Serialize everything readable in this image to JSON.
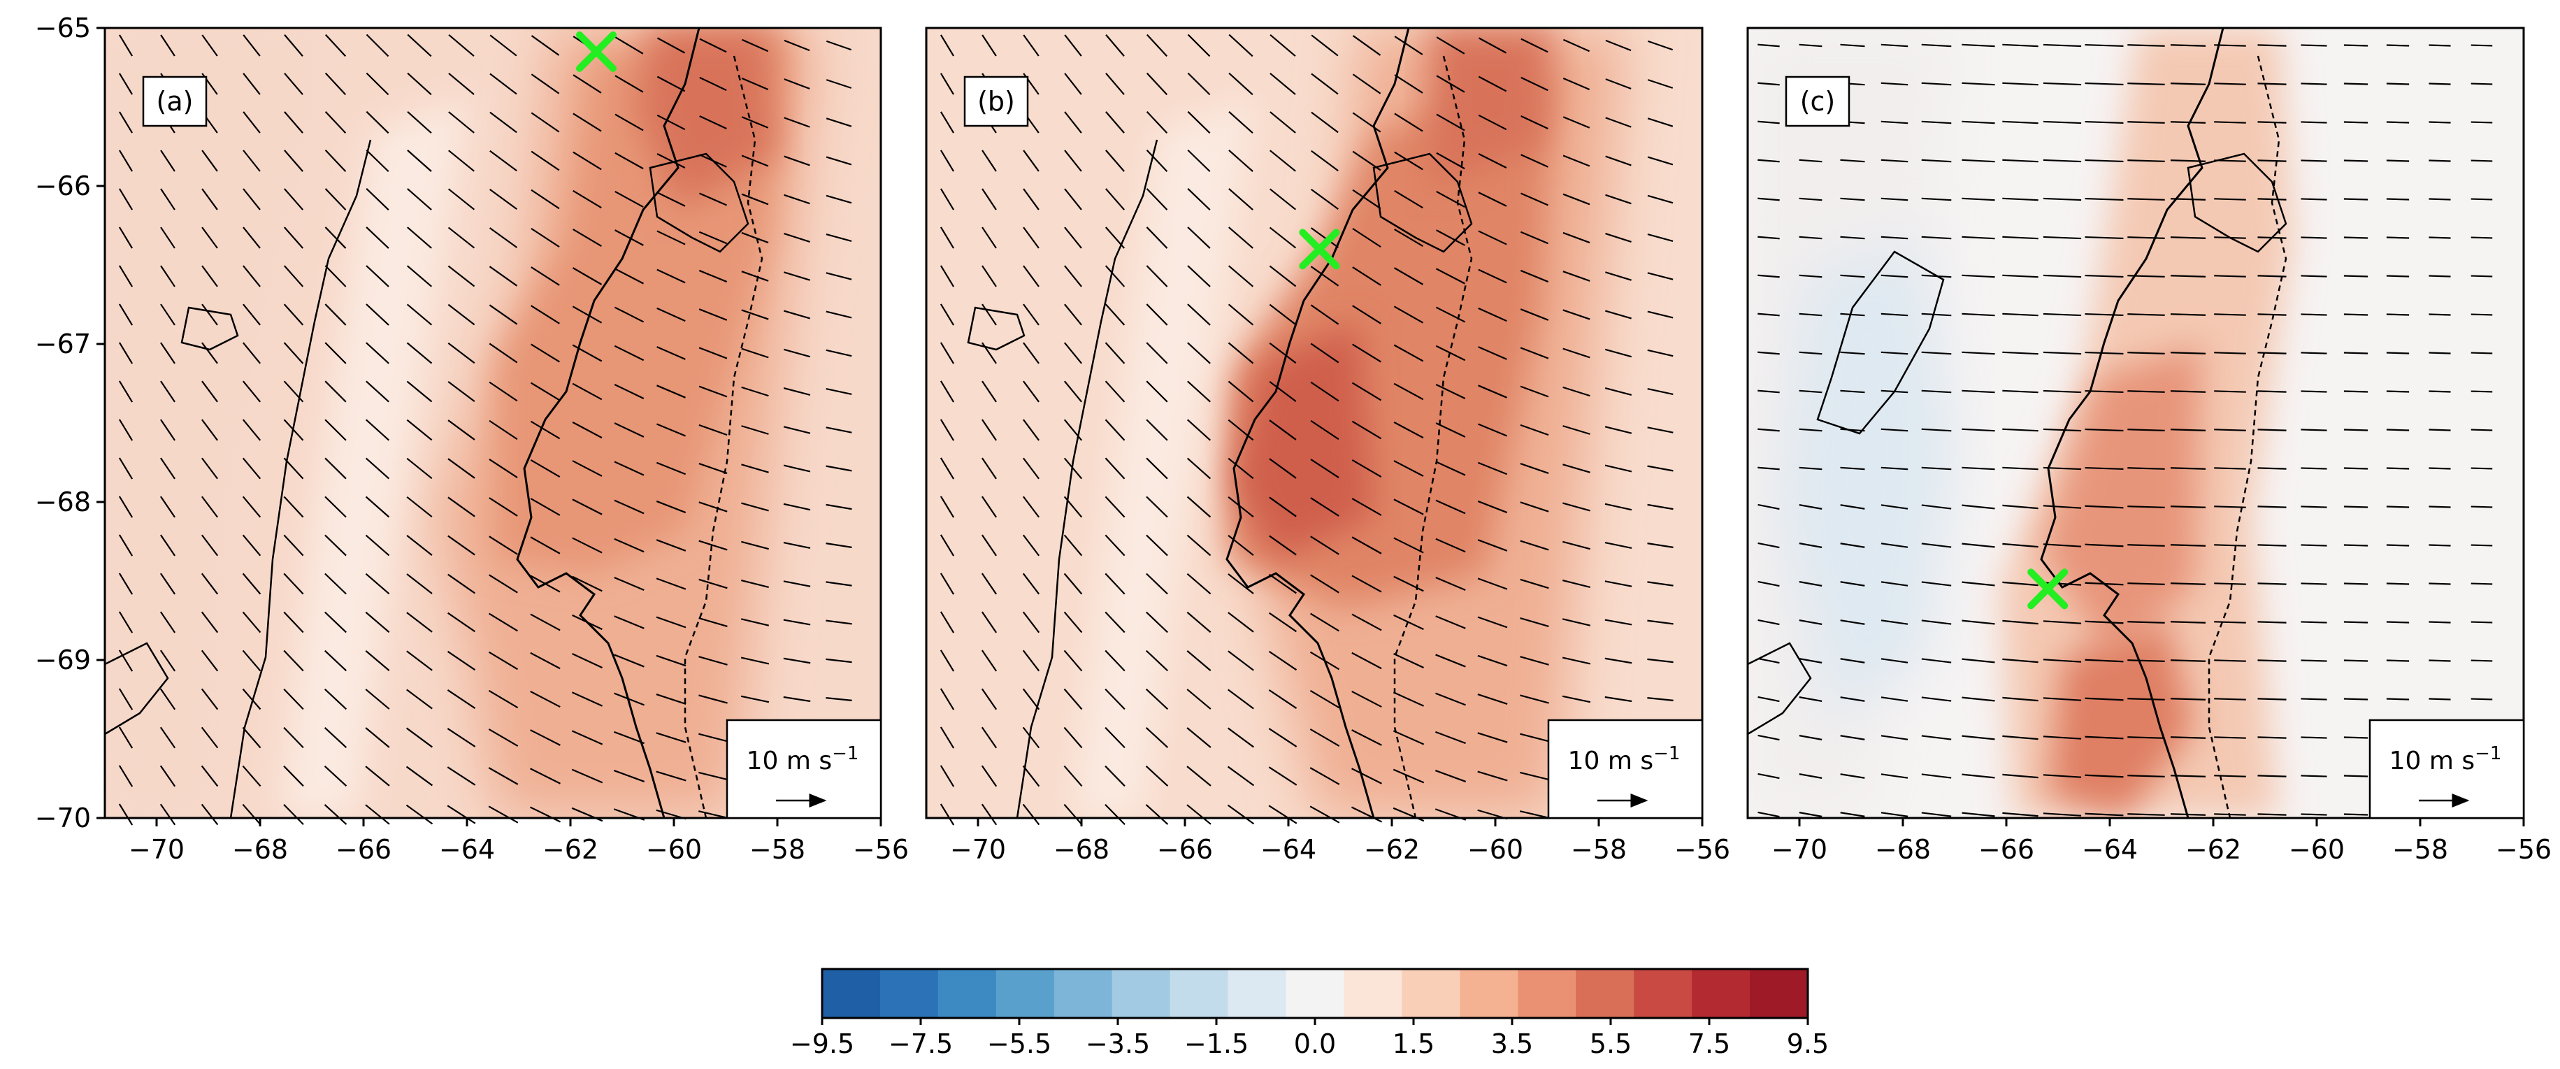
{
  "panels": [
    {
      "label": "(a)",
      "marker": {
        "lon": -61.5,
        "lat": -65.15
      }
    },
    {
      "label": "(b)",
      "marker": {
        "lon": -63.4,
        "lat": -66.4
      }
    },
    {
      "label": "(c)",
      "marker": {
        "lon": -65.2,
        "lat": -68.55
      }
    }
  ],
  "axes": {
    "x_ticks": [
      "−70",
      "−68",
      "−66",
      "−64",
      "−62",
      "−60",
      "−58",
      "−56"
    ],
    "x_values": [
      -70,
      -68,
      -66,
      -64,
      -62,
      -60,
      -58,
      -56
    ],
    "x_range": [
      -71.0,
      -56.0
    ],
    "y_ticks": [
      "−65",
      "−66",
      "−67",
      "−68",
      "−69",
      "−70"
    ],
    "y_values": [
      -65,
      -66,
      -67,
      -68,
      -69,
      -70
    ],
    "y_range": [
      -70.0,
      -65.0
    ]
  },
  "reference_vector": {
    "label": "10 m s",
    "exponent": "−1"
  },
  "colorbar": {
    "tick_labels": [
      "−9.5",
      "−7.5",
      "−5.5",
      "−3.5",
      "−1.5",
      "0.0",
      "1.5",
      "3.5",
      "5.5",
      "7.5",
      "9.5"
    ],
    "colors": [
      "#1f5fa6",
      "#2b73b6",
      "#3d89c2",
      "#5aa0cd",
      "#7db5d9",
      "#a2cbe3",
      "#c3dcec",
      "#dde9f2",
      "#f3f3f3",
      "#fbe4d8",
      "#f9cfb8",
      "#f4b293",
      "#ea9173",
      "#da6f57",
      "#c84a42",
      "#b42a31",
      "#9e1a27"
    ]
  },
  "colors": {
    "marker": "#22ee22",
    "coastline": "#000000",
    "vector": "#000000"
  }
}
